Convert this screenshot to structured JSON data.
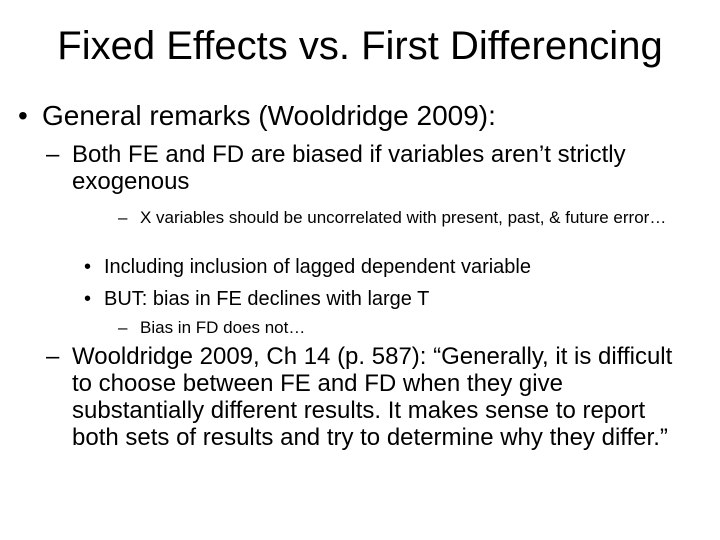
{
  "title": "Fixed Effects vs. First Differencing",
  "items": [
    {
      "bullet": "•",
      "text": "General remarks (Wooldridge 2009):"
    },
    {
      "bullet": "–",
      "text": "Both FE and FD are biased if variables aren’t strictly exogenous"
    },
    {
      "bullet": "–",
      "text": "X variables should be uncorrelated with present, past, & future error…"
    },
    {
      "bullet": "•",
      "text": "Including inclusion of lagged dependent variable"
    },
    {
      "bullet": "•",
      "text": "BUT:  bias in FE declines with large T"
    },
    {
      "bullet": "–",
      "text": "Bias in FD does not…"
    },
    {
      "bullet": "–",
      "text": "Wooldridge 2009, Ch 14 (p. 587):  “Generally, it is difficult to choose between FE and FD when they give substantially different results.  It makes sense to report both sets of results and try to determine why they differ.”"
    }
  ]
}
